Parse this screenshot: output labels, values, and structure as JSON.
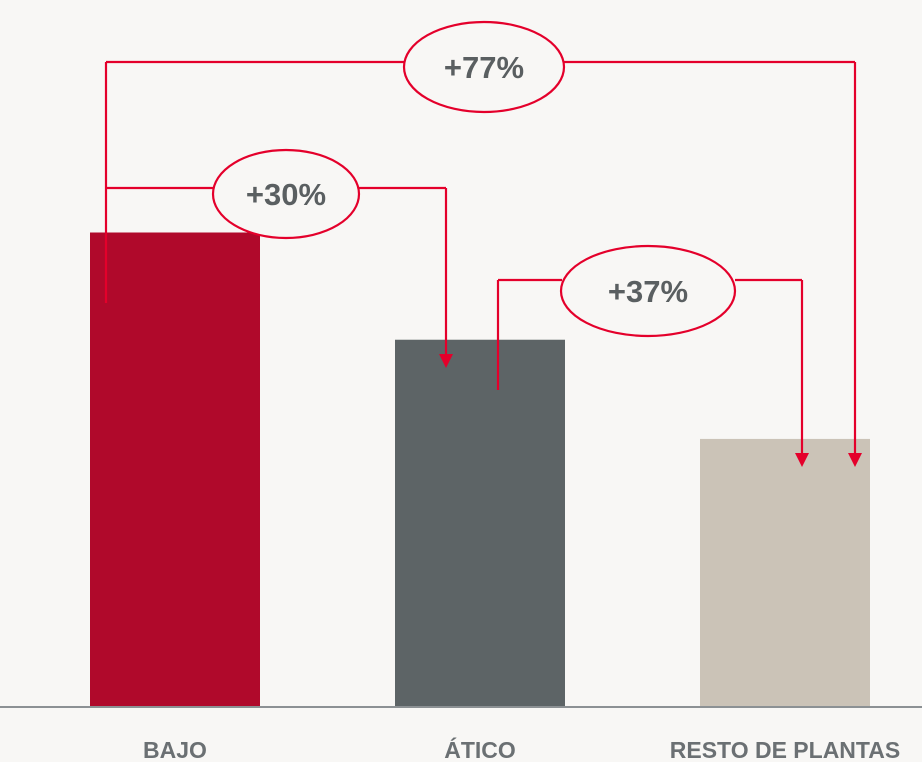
{
  "colors": {
    "background": "#f8f7f5",
    "accent_line": "#e4002b",
    "axis": "#8c9194",
    "label": "#6b7073"
  },
  "chart_data": {
    "type": "bar",
    "categories": [
      "BAJO",
      "ÁTICO",
      "RESTO DE PLANTAS"
    ],
    "values": [
      177,
      137,
      100
    ],
    "ylim": [
      0,
      260
    ],
    "bar_colors": [
      "#b0092b",
      "#5d6466",
      "#cbc3b7"
    ],
    "grid": false,
    "legend": "none",
    "comparisons": [
      {
        "from": "BAJO",
        "to": "ÁTICO",
        "label": "+30%"
      },
      {
        "from": "ÁTICO",
        "to": "RESTO DE PLANTAS",
        "label": "+37%"
      },
      {
        "from": "BAJO",
        "to": "RESTO DE PLANTAS",
        "label": "+77%"
      }
    ]
  }
}
